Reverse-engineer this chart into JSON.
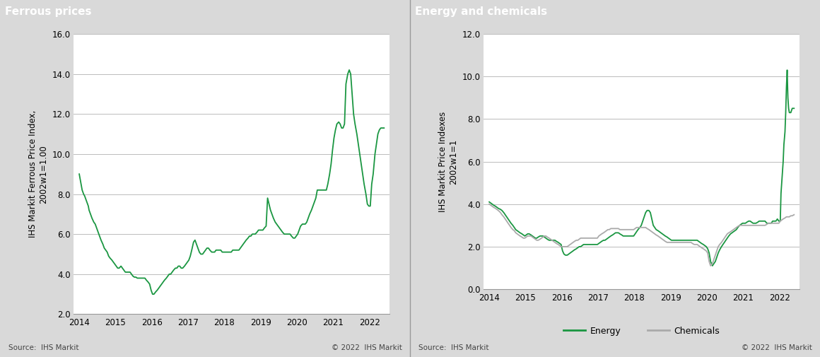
{
  "ferrous_title": "Ferrous prices",
  "energy_title": "Energy and chemicals",
  "ferrous_ylabel": "IHS Markit Ferrous Price Index,\n2002w1=1.00",
  "energy_ylabel": "IHS Markit Price Indexes\n2002w1=1",
  "ferrous_ylim": [
    2.0,
    16.0
  ],
  "energy_ylim": [
    0.0,
    12.0
  ],
  "ferrous_yticks": [
    2.0,
    4.0,
    6.0,
    8.0,
    10.0,
    12.0,
    14.0,
    16.0
  ],
  "energy_yticks": [
    0.0,
    2.0,
    4.0,
    6.0,
    8.0,
    10.0,
    12.0
  ],
  "xtick_years": [
    "2014",
    "2015",
    "2016",
    "2017",
    "2018",
    "2019",
    "2020",
    "2021",
    "2022"
  ],
  "source_text": "Source:  IHS Markit",
  "copyright_text": "© 2022  IHS Markit",
  "energy_legend": [
    "Energy",
    "Chemicals"
  ],
  "green_color": "#1a9641",
  "gray_color": "#aaaaaa",
  "header_bg": "#888888",
  "header_text_color": "#ffffff",
  "panel_bg": "#d9d9d9",
  "plot_bg": "#ffffff",
  "grid_color": "#bbbbbb",
  "ferrous_x": [
    2014.0,
    2014.02,
    2014.04,
    2014.06,
    2014.08,
    2014.1,
    2014.12,
    2014.15,
    2014.17,
    2014.19,
    2014.21,
    2014.23,
    2014.25,
    2014.27,
    2014.31,
    2014.35,
    2014.4,
    2014.44,
    2014.48,
    2014.52,
    2014.56,
    2014.6,
    2014.65,
    2014.69,
    2014.73,
    2014.77,
    2014.81,
    2014.85,
    2014.9,
    2014.94,
    2014.98,
    2015.02,
    2015.06,
    2015.1,
    2015.15,
    2015.19,
    2015.23,
    2015.27,
    2015.31,
    2015.35,
    2015.4,
    2015.44,
    2015.48,
    2015.52,
    2015.56,
    2015.6,
    2015.65,
    2015.69,
    2015.73,
    2015.77,
    2015.81,
    2015.85,
    2015.9,
    2015.94,
    2015.98,
    2016.02,
    2016.06,
    2016.1,
    2016.15,
    2016.19,
    2016.23,
    2016.27,
    2016.31,
    2016.35,
    2016.4,
    2016.44,
    2016.48,
    2016.52,
    2016.56,
    2016.6,
    2016.65,
    2016.69,
    2016.73,
    2016.77,
    2016.81,
    2016.85,
    2016.9,
    2016.94,
    2016.98,
    2017.02,
    2017.06,
    2017.1,
    2017.15,
    2017.19,
    2017.23,
    2017.27,
    2017.31,
    2017.35,
    2017.4,
    2017.44,
    2017.48,
    2017.52,
    2017.56,
    2017.6,
    2017.65,
    2017.69,
    2017.73,
    2017.77,
    2017.81,
    2017.85,
    2017.9,
    2017.94,
    2017.98,
    2018.02,
    2018.06,
    2018.1,
    2018.15,
    2018.19,
    2018.23,
    2018.27,
    2018.31,
    2018.35,
    2018.4,
    2018.44,
    2018.48,
    2018.52,
    2018.56,
    2018.6,
    2018.65,
    2018.69,
    2018.73,
    2018.77,
    2018.81,
    2018.85,
    2018.9,
    2018.94,
    2018.98,
    2019.02,
    2019.06,
    2019.1,
    2019.15,
    2019.19,
    2019.23,
    2019.27,
    2019.31,
    2019.35,
    2019.4,
    2019.44,
    2019.48,
    2019.52,
    2019.56,
    2019.6,
    2019.65,
    2019.69,
    2019.73,
    2019.77,
    2019.81,
    2019.85,
    2019.9,
    2019.94,
    2019.98,
    2020.02,
    2020.06,
    2020.1,
    2020.15,
    2020.19,
    2020.23,
    2020.27,
    2020.31,
    2020.35,
    2020.4,
    2020.44,
    2020.48,
    2020.52,
    2020.56,
    2020.6,
    2020.65,
    2020.69,
    2020.73,
    2020.77,
    2020.81,
    2020.85,
    2020.9,
    2020.94,
    2020.98,
    2021.02,
    2021.06,
    2021.1,
    2021.15,
    2021.19,
    2021.23,
    2021.27,
    2021.31,
    2021.35,
    2021.4,
    2021.44,
    2021.48,
    2021.52,
    2021.56,
    2021.6,
    2021.65,
    2021.69,
    2021.73,
    2021.77,
    2021.81,
    2021.85,
    2021.9,
    2021.94,
    2021.98,
    2022.02,
    2022.06,
    2022.1,
    2022.15,
    2022.19,
    2022.23,
    2022.27,
    2022.31,
    2022.35,
    2022.4
  ],
  "ferrous_y": [
    9.0,
    8.8,
    8.6,
    8.4,
    8.2,
    8.1,
    8.0,
    7.9,
    7.8,
    7.7,
    7.6,
    7.5,
    7.4,
    7.2,
    7.0,
    6.8,
    6.6,
    6.5,
    6.3,
    6.1,
    5.9,
    5.7,
    5.5,
    5.3,
    5.2,
    5.1,
    4.9,
    4.8,
    4.7,
    4.6,
    4.5,
    4.4,
    4.3,
    4.3,
    4.4,
    4.3,
    4.2,
    4.1,
    4.1,
    4.1,
    4.1,
    4.0,
    3.9,
    3.85,
    3.85,
    3.8,
    3.8,
    3.8,
    3.8,
    3.8,
    3.8,
    3.7,
    3.6,
    3.5,
    3.2,
    3.0,
    3.0,
    3.1,
    3.2,
    3.3,
    3.4,
    3.5,
    3.6,
    3.7,
    3.8,
    3.9,
    4.0,
    4.0,
    4.1,
    4.2,
    4.3,
    4.3,
    4.4,
    4.4,
    4.3,
    4.3,
    4.4,
    4.5,
    4.6,
    4.7,
    4.9,
    5.2,
    5.6,
    5.7,
    5.5,
    5.3,
    5.1,
    5.0,
    5.0,
    5.1,
    5.2,
    5.3,
    5.3,
    5.2,
    5.1,
    5.1,
    5.1,
    5.2,
    5.2,
    5.2,
    5.2,
    5.1,
    5.1,
    5.1,
    5.1,
    5.1,
    5.1,
    5.1,
    5.2,
    5.2,
    5.2,
    5.2,
    5.2,
    5.3,
    5.4,
    5.5,
    5.6,
    5.7,
    5.8,
    5.9,
    5.9,
    6.0,
    6.0,
    6.0,
    6.1,
    6.2,
    6.2,
    6.2,
    6.2,
    6.3,
    6.4,
    7.8,
    7.5,
    7.2,
    7.0,
    6.8,
    6.6,
    6.5,
    6.4,
    6.3,
    6.2,
    6.1,
    6.0,
    6.0,
    6.0,
    6.0,
    6.0,
    5.9,
    5.8,
    5.8,
    5.9,
    6.0,
    6.2,
    6.4,
    6.5,
    6.5,
    6.5,
    6.6,
    6.8,
    7.0,
    7.2,
    7.4,
    7.6,
    7.8,
    8.2,
    8.2,
    8.2,
    8.2,
    8.2,
    8.2,
    8.2,
    8.5,
    9.0,
    9.5,
    10.2,
    10.8,
    11.2,
    11.5,
    11.6,
    11.5,
    11.3,
    11.3,
    11.5,
    13.5,
    14.0,
    14.2,
    14.0,
    13.0,
    12.0,
    11.5,
    11.0,
    10.5,
    10.0,
    9.5,
    9.0,
    8.5,
    8.0,
    7.5,
    7.4,
    7.4,
    8.5,
    9.0,
    10.0,
    10.5,
    11.0,
    11.2,
    11.3,
    11.3,
    11.3
  ],
  "energy_x": [
    2014.0,
    2014.04,
    2014.08,
    2014.12,
    2014.17,
    2014.21,
    2014.25,
    2014.31,
    2014.35,
    2014.4,
    2014.44,
    2014.48,
    2014.52,
    2014.56,
    2014.6,
    2014.65,
    2014.69,
    2014.73,
    2014.77,
    2014.85,
    2014.9,
    2014.94,
    2014.98,
    2015.02,
    2015.06,
    2015.1,
    2015.15,
    2015.19,
    2015.23,
    2015.27,
    2015.31,
    2015.35,
    2015.4,
    2015.44,
    2015.48,
    2015.52,
    2015.56,
    2015.6,
    2015.65,
    2015.69,
    2015.73,
    2015.77,
    2015.81,
    2015.85,
    2015.9,
    2015.94,
    2015.98,
    2016.02,
    2016.06,
    2016.1,
    2016.15,
    2016.19,
    2016.23,
    2016.27,
    2016.31,
    2016.35,
    2016.4,
    2016.44,
    2016.48,
    2016.52,
    2016.56,
    2016.6,
    2016.65,
    2016.69,
    2016.73,
    2016.77,
    2016.81,
    2016.85,
    2016.9,
    2016.94,
    2016.98,
    2017.02,
    2017.06,
    2017.1,
    2017.15,
    2017.19,
    2017.23,
    2017.27,
    2017.31,
    2017.35,
    2017.4,
    2017.44,
    2017.48,
    2017.52,
    2017.56,
    2017.6,
    2017.65,
    2017.69,
    2017.73,
    2017.77,
    2017.81,
    2017.85,
    2017.9,
    2017.94,
    2017.98,
    2018.02,
    2018.06,
    2018.1,
    2018.15,
    2018.19,
    2018.23,
    2018.27,
    2018.31,
    2018.35,
    2018.4,
    2018.44,
    2018.48,
    2018.52,
    2018.56,
    2018.6,
    2018.65,
    2018.69,
    2018.73,
    2018.77,
    2018.81,
    2018.85,
    2018.9,
    2018.94,
    2018.98,
    2019.02,
    2019.06,
    2019.1,
    2019.15,
    2019.19,
    2019.23,
    2019.27,
    2019.31,
    2019.35,
    2019.4,
    2019.44,
    2019.48,
    2019.52,
    2019.56,
    2019.6,
    2019.65,
    2019.69,
    2019.73,
    2019.77,
    2019.81,
    2019.85,
    2019.9,
    2019.94,
    2019.98,
    2020.02,
    2020.06,
    2020.1,
    2020.15,
    2020.19,
    2020.23,
    2020.27,
    2020.31,
    2020.35,
    2020.4,
    2020.44,
    2020.48,
    2020.52,
    2020.56,
    2020.6,
    2020.65,
    2020.69,
    2020.73,
    2020.77,
    2020.81,
    2020.85,
    2020.9,
    2020.94,
    2020.98,
    2021.02,
    2021.06,
    2021.1,
    2021.15,
    2021.19,
    2021.23,
    2021.27,
    2021.31,
    2021.35,
    2021.4,
    2021.44,
    2021.48,
    2021.52,
    2021.56,
    2021.6,
    2021.65,
    2021.69,
    2021.73,
    2021.77,
    2021.81,
    2021.85,
    2021.9,
    2021.94,
    2021.98,
    2022.02,
    2022.04,
    2022.06,
    2022.08,
    2022.1,
    2022.12,
    2022.15,
    2022.17,
    2022.19,
    2022.21,
    2022.23,
    2022.25,
    2022.27,
    2022.31,
    2022.35,
    2022.4
  ],
  "energy_y": [
    4.1,
    4.05,
    4.0,
    3.95,
    3.9,
    3.85,
    3.8,
    3.75,
    3.7,
    3.6,
    3.5,
    3.4,
    3.3,
    3.2,
    3.1,
    3.0,
    2.9,
    2.8,
    2.75,
    2.65,
    2.6,
    2.55,
    2.5,
    2.55,
    2.6,
    2.6,
    2.55,
    2.5,
    2.45,
    2.4,
    2.4,
    2.45,
    2.5,
    2.5,
    2.5,
    2.45,
    2.4,
    2.35,
    2.3,
    2.3,
    2.3,
    2.3,
    2.3,
    2.25,
    2.2,
    2.15,
    2.1,
    1.8,
    1.65,
    1.6,
    1.6,
    1.65,
    1.7,
    1.75,
    1.8,
    1.85,
    1.9,
    1.95,
    2.0,
    2.0,
    2.05,
    2.1,
    2.1,
    2.1,
    2.1,
    2.1,
    2.1,
    2.1,
    2.1,
    2.1,
    2.1,
    2.15,
    2.2,
    2.25,
    2.3,
    2.3,
    2.35,
    2.4,
    2.45,
    2.5,
    2.55,
    2.6,
    2.65,
    2.65,
    2.65,
    2.6,
    2.55,
    2.5,
    2.5,
    2.5,
    2.5,
    2.5,
    2.5,
    2.5,
    2.5,
    2.6,
    2.7,
    2.8,
    2.9,
    3.0,
    3.2,
    3.4,
    3.6,
    3.7,
    3.7,
    3.6,
    3.3,
    3.0,
    2.9,
    2.8,
    2.75,
    2.7,
    2.65,
    2.6,
    2.55,
    2.5,
    2.45,
    2.4,
    2.35,
    2.3,
    2.3,
    2.3,
    2.3,
    2.3,
    2.3,
    2.3,
    2.3,
    2.3,
    2.3,
    2.3,
    2.3,
    2.3,
    2.3,
    2.3,
    2.3,
    2.3,
    2.3,
    2.25,
    2.2,
    2.15,
    2.1,
    2.05,
    2.0,
    1.9,
    1.7,
    1.3,
    1.1,
    1.2,
    1.3,
    1.5,
    1.7,
    1.85,
    2.0,
    2.1,
    2.2,
    2.3,
    2.4,
    2.5,
    2.6,
    2.65,
    2.7,
    2.75,
    2.8,
    2.9,
    3.0,
    3.05,
    3.1,
    3.1,
    3.1,
    3.15,
    3.2,
    3.2,
    3.15,
    3.1,
    3.1,
    3.1,
    3.15,
    3.2,
    3.2,
    3.2,
    3.2,
    3.2,
    3.1,
    3.1,
    3.1,
    3.1,
    3.2,
    3.2,
    3.2,
    3.3,
    3.2,
    3.2,
    4.5,
    5.0,
    5.5,
    6.0,
    6.8,
    7.4,
    8.3,
    9.5,
    10.3,
    9.0,
    8.5,
    8.3,
    8.3,
    8.5,
    8.5
  ],
  "chemicals_x": [
    2014.0,
    2014.04,
    2014.08,
    2014.12,
    2014.17,
    2014.21,
    2014.25,
    2014.31,
    2014.35,
    2014.4,
    2014.44,
    2014.48,
    2014.52,
    2014.56,
    2014.6,
    2014.65,
    2014.69,
    2014.73,
    2014.77,
    2014.85,
    2014.9,
    2014.94,
    2014.98,
    2015.02,
    2015.06,
    2015.1,
    2015.15,
    2015.19,
    2015.23,
    2015.27,
    2015.31,
    2015.35,
    2015.4,
    2015.44,
    2015.48,
    2015.52,
    2015.56,
    2015.6,
    2015.65,
    2015.69,
    2015.73,
    2015.77,
    2015.81,
    2015.85,
    2015.9,
    2015.94,
    2015.98,
    2016.02,
    2016.06,
    2016.1,
    2016.15,
    2016.19,
    2016.23,
    2016.27,
    2016.31,
    2016.35,
    2016.4,
    2016.44,
    2016.48,
    2016.52,
    2016.56,
    2016.6,
    2016.65,
    2016.69,
    2016.73,
    2016.77,
    2016.81,
    2016.85,
    2016.9,
    2016.94,
    2016.98,
    2017.02,
    2017.06,
    2017.1,
    2017.15,
    2017.19,
    2017.23,
    2017.27,
    2017.31,
    2017.35,
    2017.4,
    2017.44,
    2017.48,
    2017.52,
    2017.56,
    2017.6,
    2017.65,
    2017.69,
    2017.73,
    2017.77,
    2017.81,
    2017.85,
    2017.9,
    2017.94,
    2017.98,
    2018.02,
    2018.06,
    2018.1,
    2018.15,
    2018.19,
    2018.23,
    2018.27,
    2018.31,
    2018.35,
    2018.4,
    2018.44,
    2018.48,
    2018.52,
    2018.56,
    2018.6,
    2018.65,
    2018.69,
    2018.73,
    2018.77,
    2018.81,
    2018.85,
    2018.9,
    2018.94,
    2018.98,
    2019.02,
    2019.06,
    2019.1,
    2019.15,
    2019.19,
    2019.23,
    2019.27,
    2019.31,
    2019.35,
    2019.4,
    2019.44,
    2019.48,
    2019.52,
    2019.56,
    2019.6,
    2019.65,
    2019.69,
    2019.73,
    2019.77,
    2019.81,
    2019.85,
    2019.9,
    2019.94,
    2019.98,
    2020.02,
    2020.06,
    2020.1,
    2020.15,
    2020.19,
    2020.23,
    2020.27,
    2020.31,
    2020.35,
    2020.4,
    2020.44,
    2020.48,
    2020.52,
    2020.56,
    2020.6,
    2020.65,
    2020.69,
    2020.73,
    2020.77,
    2020.81,
    2020.85,
    2020.9,
    2020.94,
    2020.98,
    2021.02,
    2021.06,
    2021.1,
    2021.15,
    2021.19,
    2021.23,
    2021.27,
    2021.31,
    2021.35,
    2021.4,
    2021.44,
    2021.48,
    2021.52,
    2021.56,
    2021.6,
    2021.65,
    2021.69,
    2021.73,
    2021.77,
    2021.81,
    2021.85,
    2021.9,
    2021.94,
    2021.98,
    2022.02,
    2022.06,
    2022.1,
    2022.15,
    2022.19,
    2022.23,
    2022.27,
    2022.31,
    2022.35,
    2022.4
  ],
  "chemicals_y": [
    4.0,
    3.95,
    3.9,
    3.85,
    3.8,
    3.75,
    3.7,
    3.6,
    3.5,
    3.4,
    3.3,
    3.2,
    3.1,
    3.0,
    2.9,
    2.8,
    2.75,
    2.65,
    2.6,
    2.5,
    2.45,
    2.4,
    2.4,
    2.45,
    2.5,
    2.5,
    2.5,
    2.45,
    2.4,
    2.35,
    2.3,
    2.3,
    2.35,
    2.4,
    2.45,
    2.5,
    2.5,
    2.45,
    2.4,
    2.35,
    2.3,
    2.25,
    2.2,
    2.15,
    2.1,
    2.05,
    2.0,
    2.0,
    2.0,
    2.0,
    2.0,
    2.05,
    2.1,
    2.15,
    2.2,
    2.25,
    2.3,
    2.3,
    2.35,
    2.4,
    2.4,
    2.4,
    2.4,
    2.4,
    2.4,
    2.4,
    2.4,
    2.4,
    2.4,
    2.4,
    2.4,
    2.5,
    2.55,
    2.6,
    2.65,
    2.7,
    2.75,
    2.8,
    2.8,
    2.85,
    2.85,
    2.85,
    2.85,
    2.85,
    2.85,
    2.8,
    2.8,
    2.8,
    2.8,
    2.8,
    2.8,
    2.8,
    2.8,
    2.8,
    2.8,
    2.85,
    2.9,
    2.9,
    2.9,
    2.9,
    2.9,
    2.9,
    2.9,
    2.85,
    2.8,
    2.75,
    2.7,
    2.65,
    2.6,
    2.55,
    2.5,
    2.45,
    2.4,
    2.35,
    2.3,
    2.25,
    2.2,
    2.2,
    2.2,
    2.2,
    2.2,
    2.2,
    2.2,
    2.2,
    2.2,
    2.2,
    2.2,
    2.2,
    2.2,
    2.2,
    2.2,
    2.2,
    2.2,
    2.15,
    2.1,
    2.1,
    2.1,
    2.05,
    2.0,
    1.95,
    1.9,
    1.85,
    1.8,
    1.7,
    1.3,
    1.1,
    1.2,
    1.4,
    1.6,
    1.8,
    2.0,
    2.1,
    2.2,
    2.3,
    2.4,
    2.5,
    2.6,
    2.65,
    2.7,
    2.75,
    2.8,
    2.85,
    2.9,
    2.95,
    3.0,
    3.0,
    3.0,
    3.0,
    3.0,
    3.0,
    3.0,
    3.0,
    3.0,
    3.0,
    3.0,
    3.0,
    3.0,
    3.0,
    3.0,
    3.0,
    3.0,
    3.0,
    3.05,
    3.1,
    3.1,
    3.1,
    3.1,
    3.1,
    3.1,
    3.1,
    3.1,
    3.2,
    3.25,
    3.3,
    3.35,
    3.4,
    3.4,
    3.4,
    3.45,
    3.45,
    3.5
  ]
}
